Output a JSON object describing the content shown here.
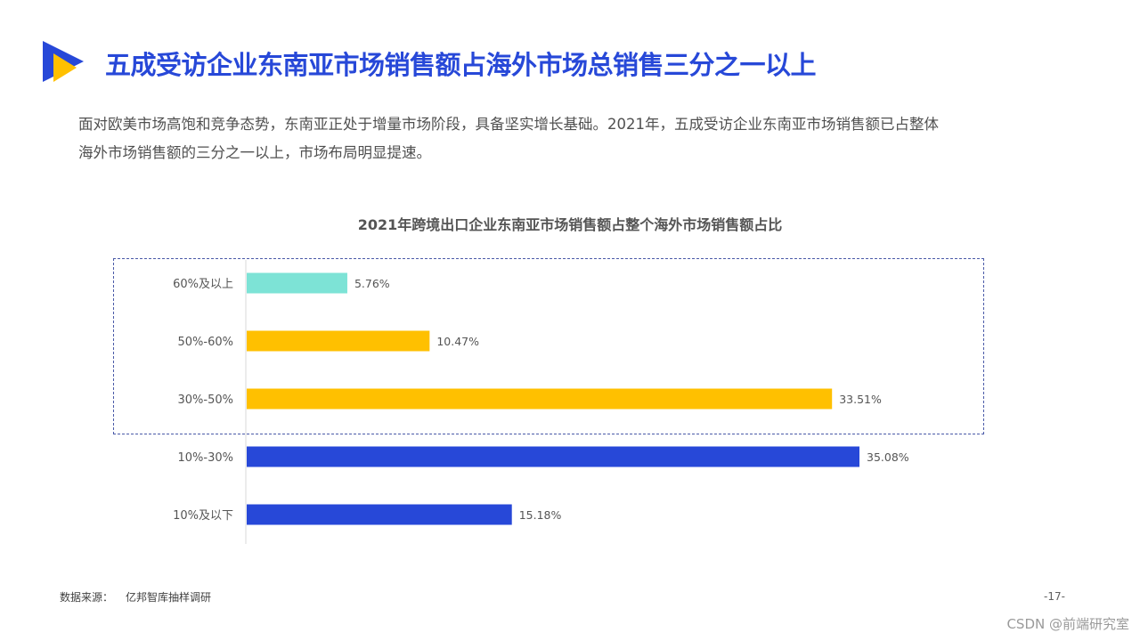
{
  "title": "五成受访企业东南亚市场销售额占海外市场总销售三分之一以上",
  "intro_lines": [
    "面对欧美市场高饱和竞争态势，东南亚正处于增量市场阶段，具备坚实增长基础。2021年，五成受访企业东南亚市场销售额已占整体",
    "海外市场销售额的三分之一以上，市场布局明显提速。"
  ],
  "chart_data": {
    "type": "bar",
    "orientation": "horizontal",
    "title": "2021年跨境出口企业东南亚市场销售额占整个海外市场销售额占比",
    "categories": [
      "60%及以上",
      "50%-60%",
      "30%-50%",
      "10%-30%",
      "10%及以下"
    ],
    "values": [
      5.76,
      10.47,
      33.51,
      35.08,
      15.18
    ],
    "data_labels": [
      "5.76%",
      "10.47%",
      "33.51%",
      "35.08%",
      "15.18%"
    ],
    "value_unit": "%",
    "xlim": [
      0,
      35.08
    ],
    "bar_colors": [
      "#7de3d6",
      "#ffc000",
      "#ffc000",
      "#2748d8",
      "#2748d8"
    ],
    "highlighted_categories": [
      "60%及以上",
      "50%-60%",
      "30%-50%"
    ],
    "grid": false,
    "legend": "none"
  },
  "colors": {
    "accent_blue": "#2748d8",
    "accent_yellow": "#ffc000",
    "accent_teal": "#7de3d6",
    "highlight_border": "#4a5aa8"
  },
  "footer": {
    "source_label": "数据来源：",
    "source_value": "亿邦智库抽样调研",
    "page_number": "-17-"
  },
  "watermark": "CSDN @前端研究室"
}
